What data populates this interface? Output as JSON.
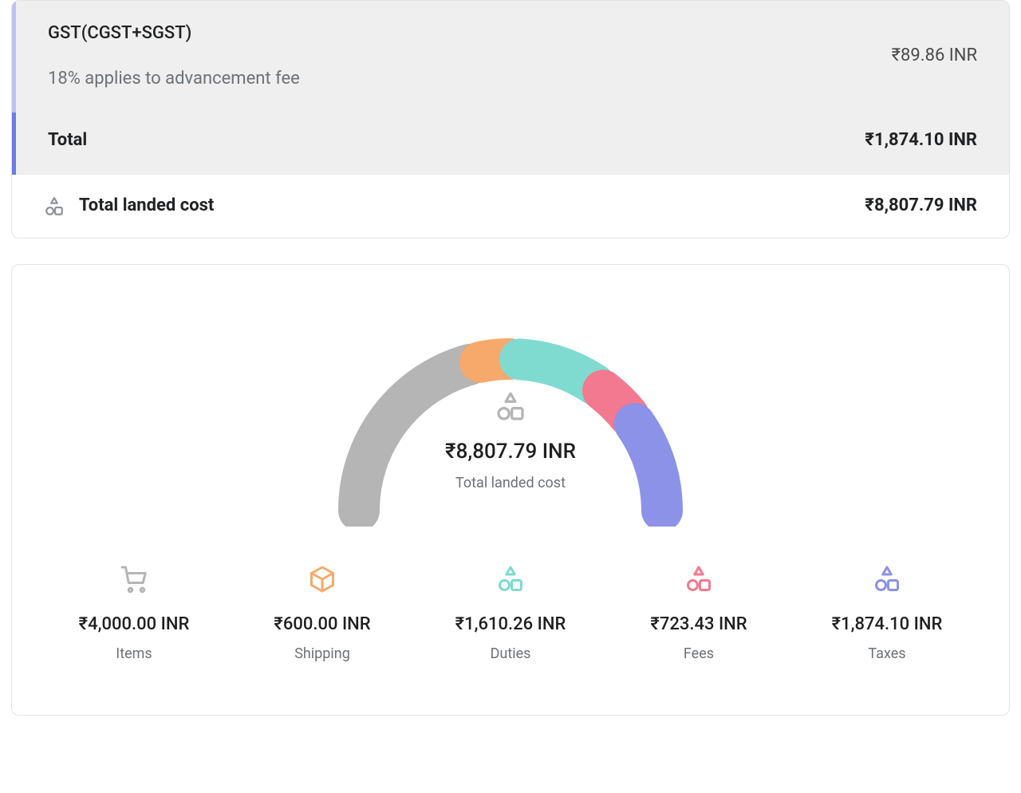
{
  "summary": {
    "gst": {
      "title": "GST(CGST+SGST)",
      "subtitle": "18% applies to advancement fee",
      "amount": "₹89.86 INR",
      "accent_color": "#bcc1f1"
    },
    "total": {
      "label": "Total",
      "amount": "₹1,874.10 INR",
      "accent_color": "#6b7ce6"
    },
    "landed": {
      "label": "Total landed cost",
      "amount": "₹8,807.79 INR"
    }
  },
  "chart": {
    "type": "semi-donut",
    "center": {
      "amount": "₹8,807.79 INR",
      "label": "Total landed cost"
    },
    "total_value": 8807.79,
    "arc": {
      "stroke_width": 52,
      "gap_deg": 4,
      "radius": 190
    },
    "segments": [
      {
        "key": "items",
        "value": 4000.0,
        "color": "#b5b5b5"
      },
      {
        "key": "shipping",
        "value": 600.0,
        "color": "#f6a96b"
      },
      {
        "key": "duties",
        "value": 1610.26,
        "color": "#7fdbd0"
      },
      {
        "key": "fees",
        "value": 723.43,
        "color": "#f2798f"
      },
      {
        "key": "taxes",
        "value": 1874.1,
        "color": "#8b92e8"
      }
    ]
  },
  "breakdown": {
    "items": {
      "amount": "₹4,000.00 INR",
      "label": "Items",
      "icon": "cart",
      "icon_color": "#b5b5b5"
    },
    "shipping": {
      "amount": "₹600.00 INR",
      "label": "Shipping",
      "icon": "box",
      "icon_color": "#f6a96b"
    },
    "duties": {
      "amount": "₹1,610.26 INR",
      "label": "Duties",
      "icon": "shapes",
      "icon_color": "#7fdbd0"
    },
    "fees": {
      "amount": "₹723.43 INR",
      "label": "Fees",
      "icon": "shapes",
      "icon_color": "#f2798f"
    },
    "taxes": {
      "amount": "₹1,874.10 INR",
      "label": "Taxes",
      "icon": "shapes",
      "icon_color": "#8b92e8"
    }
  },
  "icons": {
    "shapes_gray": "#8c9196"
  }
}
